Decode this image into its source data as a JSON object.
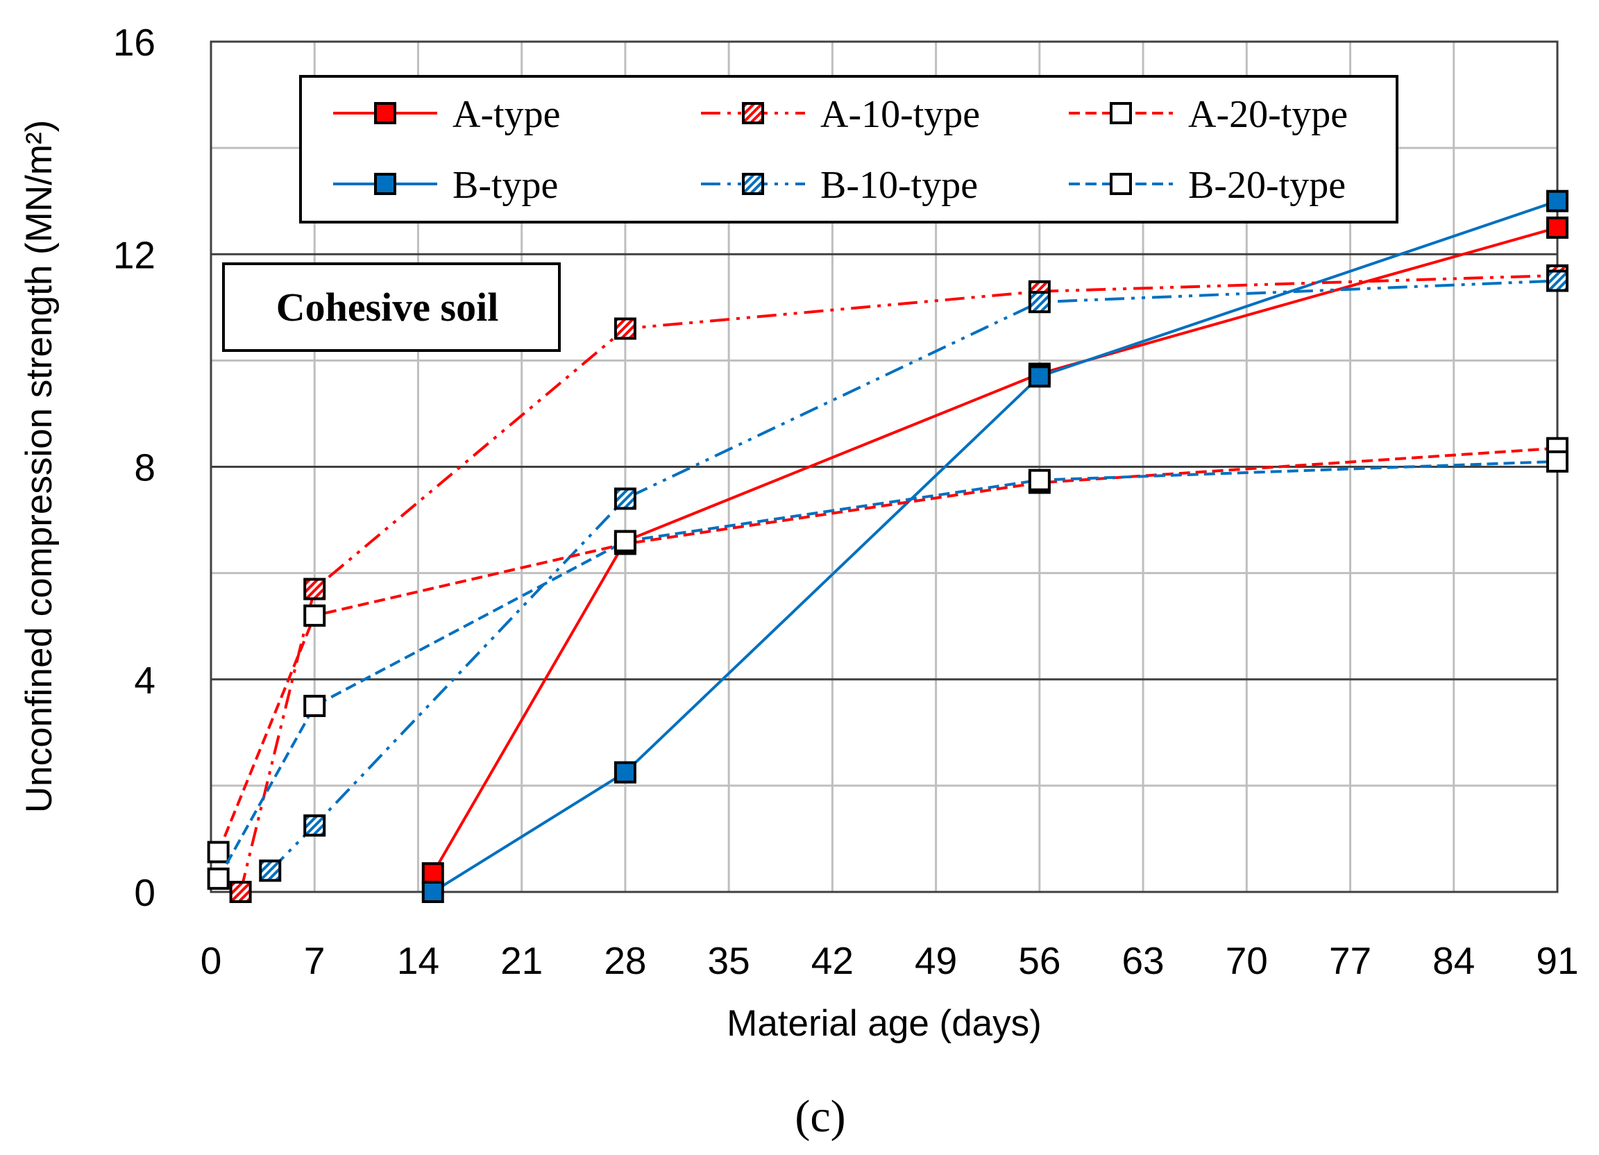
{
  "chart_data": {
    "type": "line",
    "title": "",
    "xlabel": "Material age (days)",
    "ylabel": "Unconfined compression strength (MN/m²)",
    "xlim": [
      0,
      91
    ],
    "ylim": [
      0,
      16
    ],
    "x_ticks": [
      0,
      7,
      14,
      21,
      28,
      35,
      42,
      49,
      56,
      63,
      70,
      77,
      84,
      91
    ],
    "y_ticks": [
      0,
      4,
      8,
      12,
      16
    ],
    "grid": true,
    "legend_position": "top",
    "annotation": "Cohesive soil",
    "panel_label": "(c)",
    "series": [
      {
        "name": "A-type",
        "color": "#ff0000",
        "line": "solid",
        "marker": "filled",
        "x": [
          15,
          28,
          56,
          91
        ],
        "y": [
          0.35,
          6.6,
          9.75,
          12.5
        ]
      },
      {
        "name": "B-type",
        "color": "#0070c0",
        "line": "solid",
        "marker": "filled",
        "x": [
          15,
          28,
          56,
          91
        ],
        "y": [
          0.0,
          2.25,
          9.7,
          13.0
        ]
      },
      {
        "name": "A-10-type",
        "color": "#ff0000",
        "line": "dashdotdot",
        "marker": "hatched",
        "x": [
          2,
          7,
          28,
          56,
          91
        ],
        "y": [
          0.0,
          5.7,
          10.6,
          11.3,
          11.6
        ]
      },
      {
        "name": "B-10-type",
        "color": "#0070c0",
        "line": "dashdotdot",
        "marker": "hatched",
        "x": [
          4,
          7,
          28,
          56,
          91
        ],
        "y": [
          0.4,
          1.25,
          7.4,
          11.1,
          11.5
        ]
      },
      {
        "name": "A-20-type",
        "color": "#ff0000",
        "line": "dashed",
        "marker": "open",
        "x": [
          0.5,
          7,
          28,
          56,
          91
        ],
        "y": [
          0.75,
          5.2,
          6.55,
          7.7,
          8.35
        ]
      },
      {
        "name": "B-20-type",
        "color": "#0070c0",
        "line": "dashed",
        "marker": "open",
        "x": [
          0.5,
          7,
          28,
          56,
          91
        ],
        "y": [
          0.25,
          3.5,
          6.6,
          7.75,
          8.1
        ]
      }
    ],
    "legend_order": [
      "A-type",
      "A-10-type",
      "A-20-type",
      "B-type",
      "B-10-type",
      "B-20-type"
    ]
  }
}
